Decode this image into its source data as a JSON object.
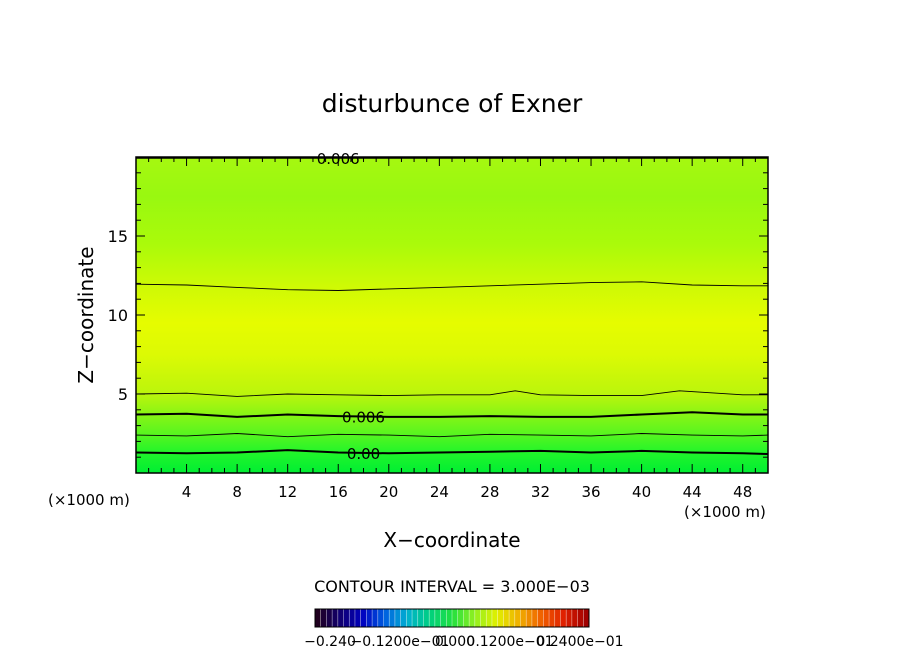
{
  "chart_data": {
    "type": "contour",
    "title": "disturbunce of Exner",
    "xlabel": "X−coordinate",
    "ylabel": "Z−coordinate",
    "x_unit": "(×1000 m)",
    "z_unit": "(×1000 m)",
    "xlim": [
      0,
      50
    ],
    "ylim": [
      0,
      20
    ],
    "x_ticks": [
      4,
      8,
      12,
      16,
      20,
      24,
      28,
      32,
      36,
      40,
      44,
      48
    ],
    "y_ticks": [
      5,
      10,
      15
    ],
    "contour_interval_text": "CONTOUR INTERVAL = 3.000E−03",
    "colorbar_labels": [
      "−0.240",
      "−0.1200e−01",
      "0.000",
      "0.1200e−01",
      "0.2400e−01"
    ],
    "contours": [
      {
        "level": 0.0,
        "label": "0.00",
        "major": true,
        "x": [
          0,
          4,
          8,
          12,
          16,
          20,
          24,
          28,
          32,
          36,
          40,
          44,
          48,
          50
        ],
        "z": [
          1.3,
          1.25,
          1.3,
          1.45,
          1.3,
          1.25,
          1.3,
          1.35,
          1.4,
          1.3,
          1.4,
          1.3,
          1.25,
          1.2
        ]
      },
      {
        "level": 0.003,
        "label": "",
        "major": false,
        "x": [
          0,
          4,
          8,
          12,
          16,
          20,
          24,
          28,
          32,
          36,
          40,
          44,
          48,
          50
        ],
        "z": [
          2.4,
          2.35,
          2.5,
          2.3,
          2.45,
          2.4,
          2.3,
          2.45,
          2.4,
          2.35,
          2.5,
          2.4,
          2.35,
          2.4
        ]
      },
      {
        "level": 0.006,
        "label": "0.006",
        "major": true,
        "x": [
          0,
          4,
          8,
          12,
          16,
          20,
          24,
          28,
          32,
          36,
          40,
          44,
          48,
          50
        ],
        "z": [
          3.7,
          3.75,
          3.55,
          3.7,
          3.6,
          3.55,
          3.55,
          3.6,
          3.55,
          3.55,
          3.7,
          3.85,
          3.7,
          3.7
        ]
      },
      {
        "level": 0.009,
        "label": "",
        "major": false,
        "x": [
          0,
          4,
          8,
          12,
          16,
          20,
          24,
          28,
          30,
          32,
          36,
          40,
          43,
          48,
          50
        ],
        "z": [
          5.0,
          5.05,
          4.85,
          5.0,
          4.95,
          4.9,
          4.95,
          4.95,
          5.2,
          4.95,
          4.9,
          4.9,
          5.2,
          4.95,
          4.95
        ]
      },
      {
        "level": 0.009,
        "label": "",
        "major": false,
        "x": [
          0,
          4,
          8,
          12,
          16,
          20,
          24,
          28,
          32,
          36,
          40,
          44,
          48,
          50
        ],
        "z": [
          11.95,
          11.9,
          11.75,
          11.6,
          11.55,
          11.65,
          11.75,
          11.85,
          11.95,
          12.05,
          12.1,
          11.9,
          11.85,
          11.85
        ]
      },
      {
        "level": 0.006,
        "label": "0.006",
        "major": true,
        "x": [
          0,
          8,
          16,
          24,
          32,
          40,
          50
        ],
        "z": [
          19.95,
          19.95,
          19.95,
          19.95,
          19.95,
          19.95,
          19.95
        ]
      }
    ],
    "field_colors": [
      {
        "z": 0,
        "color": "#00ee33"
      },
      {
        "z": 1.3,
        "color": "#22f52a"
      },
      {
        "z": 2.4,
        "color": "#55f520"
      },
      {
        "z": 3.7,
        "color": "#88f515"
      },
      {
        "z": 5.0,
        "color": "#bbf50c"
      },
      {
        "z": 7.5,
        "color": "#dcfa04"
      },
      {
        "z": 9.5,
        "color": "#e6fc00"
      },
      {
        "z": 11.9,
        "color": "#cdfa05"
      },
      {
        "z": 14.5,
        "color": "#aafa0a"
      },
      {
        "z": 17.5,
        "color": "#99f810"
      },
      {
        "z": 20,
        "color": "#a6f810"
      }
    ],
    "colorbar_colors": [
      "#200020",
      "#100070",
      "#0000c0",
      "#0060e0",
      "#00b0d0",
      "#00d080",
      "#20e040",
      "#90f020",
      "#e0f000",
      "#f0b000",
      "#f06000",
      "#e02000",
      "#a00000"
    ]
  }
}
